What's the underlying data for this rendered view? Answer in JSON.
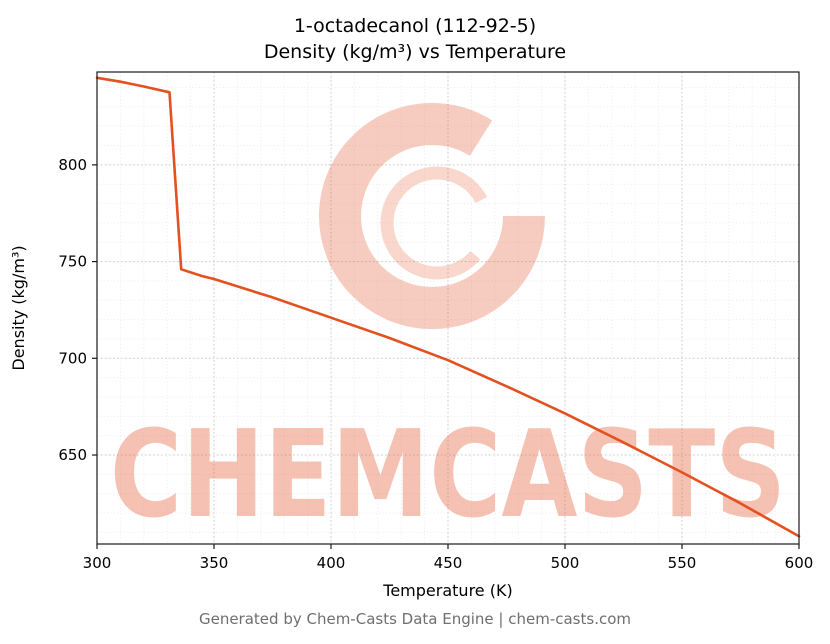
{
  "title": {
    "line1": "1-octadecanol (112-92-5)",
    "line2": "Density (kg/m³) vs Temperature"
  },
  "footer": {
    "text": "Generated by Chem-Casts Data Engine | chem-casts.com"
  },
  "watermark": {
    "text": "CHEMCASTS",
    "logo": "c-swirl-logo",
    "color": "#e4572e"
  },
  "chart_data": {
    "type": "line",
    "title": "1-octadecanol (112-92-5)\nDensity (kg/m³) vs Temperature",
    "xlabel": "Temperature (K)",
    "ylabel": "Density (kg/m³)",
    "xlim": [
      300,
      600
    ],
    "ylim": [
      604,
      848
    ],
    "xticks": [
      300,
      350,
      400,
      450,
      500,
      550,
      600
    ],
    "yticks": [
      650,
      700,
      750,
      800
    ],
    "minor_step_x": 10,
    "minor_step_y": 10,
    "grid": true,
    "legend": false,
    "line_color": "#e2511f",
    "series": [
      {
        "name": "Density",
        "x": [
          300,
          310,
          320,
          331,
          336,
          345,
          350,
          375,
          400,
          425,
          450,
          475,
          500,
          525,
          550,
          575,
          600
        ],
        "y": [
          845,
          843,
          840.5,
          837.5,
          746,
          742.5,
          741,
          731.5,
          721,
          710.5,
          699,
          685.5,
          671.5,
          656.5,
          641,
          625,
          608
        ]
      }
    ]
  }
}
